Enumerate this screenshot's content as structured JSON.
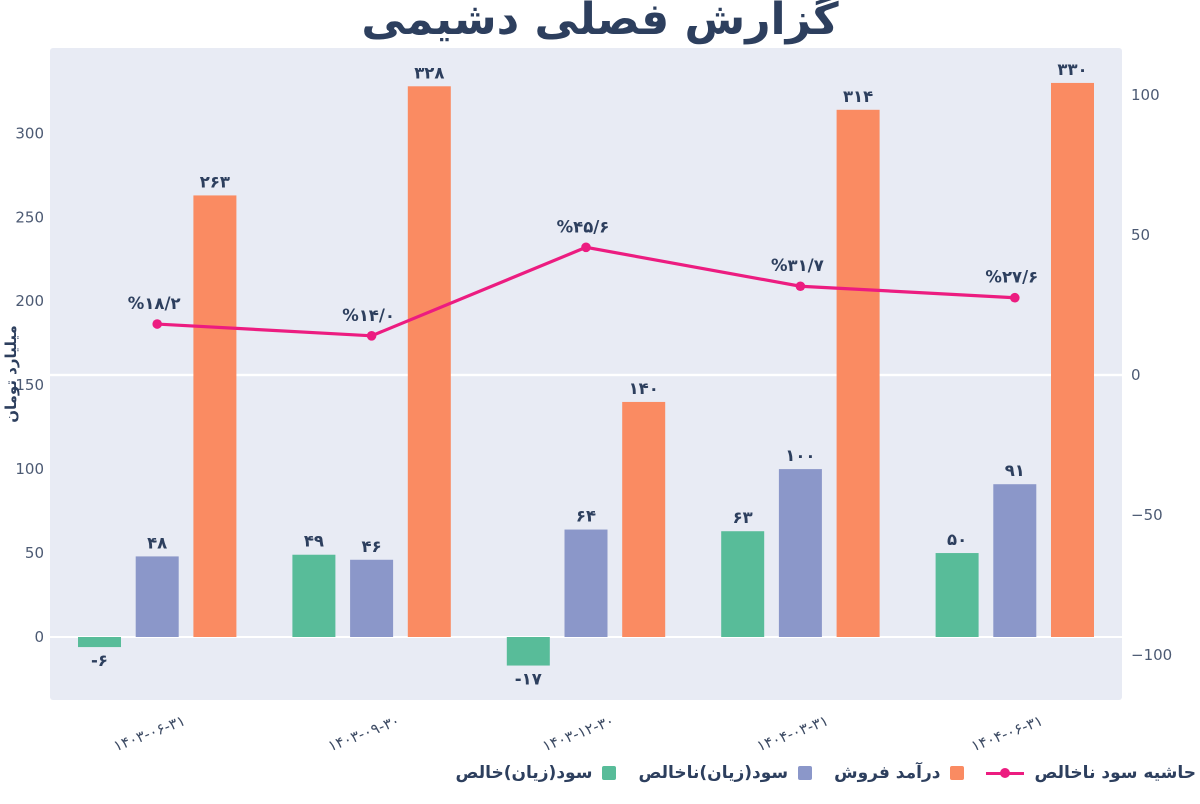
{
  "chart_data": {
    "type": "bar",
    "subtype": "grouped-bar-with-line",
    "title": "گزارش فصلی دشیمی",
    "title_prefix": "گزارش فصلی",
    "title_emphasis": "دشیمی",
    "categories": [
      "۱۴۰۳-۰۶-۳۱",
      "۱۴۰۳-۰۹-۳۰",
      "۱۴۰۳-۱۲-۳۰",
      "۱۴۰۴-۰۳-۳۱",
      "۱۴۰۴-۰۶-۳۱"
    ],
    "series": [
      {
        "name": "سود(زیان)خالص",
        "color": "#58bc99",
        "values": [
          -6,
          49,
          -17,
          63,
          50
        ],
        "labels": [
          "-۶",
          "۴۹",
          "-۱۷",
          "۶۳",
          "۵۰"
        ]
      },
      {
        "name": "سود(زیان)ناخالص",
        "color": "#8b97c9",
        "values": [
          48,
          46,
          64,
          100,
          91
        ],
        "labels": [
          "۴۸",
          "۴۶",
          "۶۴",
          "۱۰۰",
          "۹۱"
        ]
      },
      {
        "name": "درآمد فروش",
        "color": "#fa8b62",
        "values": [
          263,
          328,
          140,
          314,
          330
        ],
        "labels": [
          "۲۶۳",
          "۳۲۸",
          "۱۴۰",
          "۳۱۴",
          "۳۳۰"
        ]
      }
    ],
    "line": {
      "name": "حاشیه سود ناخالص",
      "color": "#ec1c80",
      "values": [
        18.2,
        14.0,
        45.6,
        31.7,
        27.6
      ],
      "labels": [
        "%۱۸/۲",
        "%۱۴/۰",
        "%۴۵/۶",
        "%۳۱/۷",
        "%۲۷/۶"
      ],
      "axis": "right"
    },
    "left_axis": {
      "title": "میلیارد تومان",
      "range": [
        -37,
        351
      ],
      "ticks": [
        {
          "value": 0,
          "label": "0"
        },
        {
          "value": 50,
          "label": "50"
        },
        {
          "value": 100,
          "label": "100"
        },
        {
          "value": 150,
          "label": "150"
        },
        {
          "value": 200,
          "label": "200"
        },
        {
          "value": 250,
          "label": "250"
        },
        {
          "value": 300,
          "label": "300"
        }
      ]
    },
    "right_axis": {
      "range": [
        -116,
        117
      ],
      "ticks": [
        {
          "value": 100,
          "label": "100"
        },
        {
          "value": 50,
          "label": "50"
        },
        {
          "value": 0,
          "label": "0"
        },
        {
          "value": -50,
          "label": "−50"
        },
        {
          "value": -100,
          "label": "−100"
        }
      ]
    },
    "grid": {
      "zero_line_right_axis": true,
      "zero_line_left_axis": true,
      "gridline_color": "#ffffff"
    },
    "legend_position": "bottom-right",
    "colors": {
      "plot_background": "#e8ebf4",
      "page_background": "#ffffff",
      "title_text": "#2d3f5e",
      "value_label_text": "#2d3f5e",
      "tick_text": "#4c5a73",
      "x_label_text": "#3c4a63"
    }
  }
}
